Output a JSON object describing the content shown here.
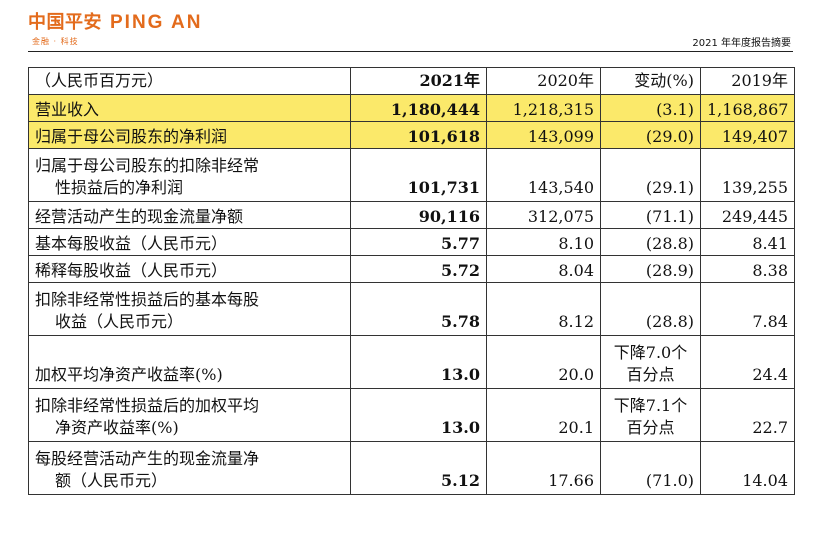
{
  "header": {
    "logo_cn": "中国平安",
    "logo_en": "PING AN",
    "logo_sub": "金融 · 科技",
    "report_title": "2021 年年度报告摘要",
    "brand_color": "#e36b1c"
  },
  "table": {
    "columns": [
      "（人民币百万元）",
      "2021年",
      "2020年",
      "变动(%)",
      "2019年"
    ],
    "highlight_color": "#fbe96a",
    "rows": [
      {
        "label": "营业收入",
        "y2021": "1,180,444",
        "y2020": "1,218,315",
        "change": "(3.1)",
        "y2019": "1,168,867"
      },
      {
        "label": "归属于母公司股东的净利润",
        "y2021": "101,618",
        "y2020": "143,099",
        "change": "(29.0)",
        "y2019": "149,407"
      },
      {
        "label_l1": "归属于母公司股东的扣除非经常",
        "label_l2": "性损益后的净利润",
        "y2021": "101,731",
        "y2020": "143,540",
        "change": "(29.1)",
        "y2019": "139,255"
      },
      {
        "label": "经营活动产生的现金流量净额",
        "y2021": "90,116",
        "y2020": "312,075",
        "change": "(71.1)",
        "y2019": "249,445"
      },
      {
        "label": "基本每股收益（人民币元）",
        "y2021": "5.77",
        "y2020": "8.10",
        "change": "(28.8)",
        "y2019": "8.41"
      },
      {
        "label": "稀释每股收益（人民币元）",
        "y2021": "5.72",
        "y2020": "8.04",
        "change": "(28.9)",
        "y2019": "8.38"
      },
      {
        "label_l1": "扣除非经常性损益后的基本每股",
        "label_l2": "收益（人民币元）",
        "y2021": "5.78",
        "y2020": "8.12",
        "change": "(28.8)",
        "y2019": "7.84"
      },
      {
        "label": "加权平均净资产收益率(%)",
        "y2021": "13.0",
        "y2020": "20.0",
        "change_l1": "下降7.0个",
        "change_l2": "百分点",
        "y2019": "24.4"
      },
      {
        "label_l1": "扣除非经常性损益后的加权平均",
        "label_l2": "净资产收益率(%)",
        "y2021": "13.0",
        "y2020": "20.1",
        "change_l1": "下降7.1个",
        "change_l2": "百分点",
        "y2019": "22.7"
      },
      {
        "label_l1": "每股经营活动产生的现金流量净",
        "label_l2": "额（人民币元）",
        "y2021": "5.12",
        "y2020": "17.66",
        "change": "(71.0)",
        "y2019": "14.04"
      }
    ]
  }
}
